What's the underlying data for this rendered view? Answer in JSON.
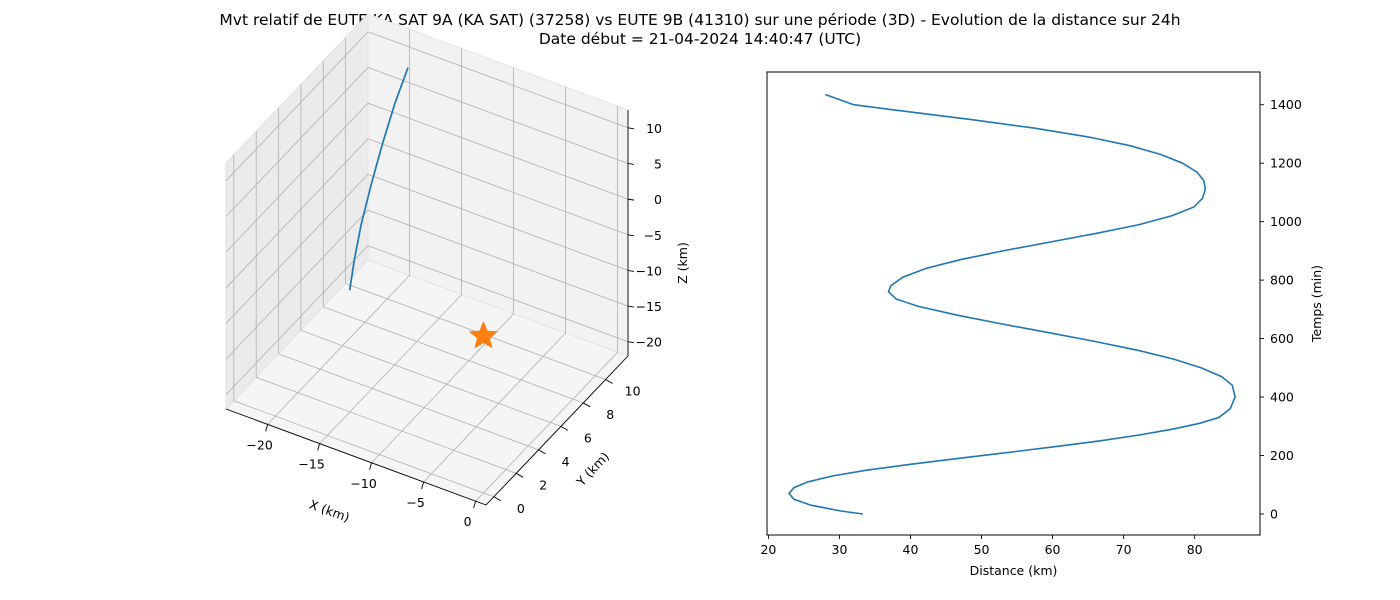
{
  "figure": {
    "title_line1": "Mvt relatif de EUTE KA SAT 9A (KA SAT) (37258) vs EUTE 9B (41310) sur une période (3D) - Evolution de la distance sur 24h",
    "title_line2": "Date début = 21-04-2024 14:40:47 (UTC)"
  },
  "chart_data": [
    {
      "type": "line3d",
      "xlabel": "X (km)",
      "ylabel": "Y (km)",
      "zlabel": "Z (km)",
      "x_ticks": [
        -20,
        -15,
        -10,
        -5,
        0
      ],
      "y_ticks": [
        0,
        2,
        4,
        6,
        8,
        10
      ],
      "z_ticks": [
        10,
        5,
        0,
        -5,
        -10,
        -15,
        -20
      ],
      "xlim": [
        -24,
        1
      ],
      "ylim": [
        -0.7,
        12
      ],
      "zlim": [
        -22,
        12.5
      ],
      "grid": true,
      "trajectory_color": "#1f77b4",
      "trajectory": [
        {
          "x": -18.0,
          "y": 10.0,
          "z": 11.5
        },
        {
          "x": -18.2,
          "y": 9.0,
          "z": 8.0
        },
        {
          "x": -18.3,
          "y": 8.0,
          "z": 4.0
        },
        {
          "x": -18.3,
          "y": 7.0,
          "z": 0.0
        },
        {
          "x": -18.2,
          "y": 6.0,
          "z": -4.0
        },
        {
          "x": -18.0,
          "y": 5.2,
          "z": -7.5
        },
        {
          "x": -17.7,
          "y": 4.5,
          "z": -10.5
        }
      ],
      "reference_marker": {
        "symbol": "star",
        "color": "#ff7f0e",
        "x": 0,
        "y": 0,
        "z": 0
      }
    },
    {
      "type": "line",
      "xlabel": "Distance (km)",
      "ylabel": "Temps (min)",
      "y_axis_side": "right",
      "x_ticks": [
        20,
        30,
        40,
        50,
        60,
        70,
        80
      ],
      "y_ticks": [
        0,
        200,
        400,
        600,
        800,
        1000,
        1200,
        1400
      ],
      "xlim": [
        19.8,
        89.2
      ],
      "ylim": [
        -72,
        1512
      ],
      "grid": false,
      "color": "#1f77b4",
      "series": [
        {
          "points": [
            [
              33.3,
              0
            ],
            [
              30.2,
              10
            ],
            [
              26.0,
              30
            ],
            [
              23.6,
              50
            ],
            [
              22.9,
              70
            ],
            [
              23.6,
              90
            ],
            [
              25.6,
              110
            ],
            [
              29.0,
              130
            ],
            [
              33.9,
              150
            ],
            [
              40.0,
              170
            ],
            [
              46.7,
              190
            ],
            [
              53.6,
              210
            ],
            [
              60.3,
              230
            ],
            [
              66.6,
              250
            ],
            [
              72.2,
              270
            ],
            [
              76.9,
              290
            ],
            [
              80.7,
              310
            ],
            [
              83.4,
              330
            ],
            [
              85.0,
              360
            ],
            [
              85.7,
              400
            ],
            [
              85.3,
              440
            ],
            [
              83.8,
              470
            ],
            [
              80.9,
              500
            ],
            [
              77.0,
              530
            ],
            [
              72.0,
              560
            ],
            [
              66.0,
              590
            ],
            [
              59.5,
              620
            ],
            [
              52.9,
              650
            ],
            [
              46.6,
              680
            ],
            [
              41.1,
              710
            ],
            [
              38.0,
              735
            ],
            [
              36.9,
              760
            ],
            [
              37.2,
              780
            ],
            [
              38.9,
              810
            ],
            [
              42.2,
              840
            ],
            [
              47.0,
              870
            ],
            [
              53.0,
              900
            ],
            [
              59.6,
              930
            ],
            [
              66.2,
              960
            ],
            [
              72.2,
              990
            ],
            [
              76.8,
              1020
            ],
            [
              79.9,
              1050
            ],
            [
              81.1,
              1080
            ],
            [
              81.5,
              1110
            ],
            [
              81.3,
              1140
            ],
            [
              80.3,
              1170
            ],
            [
              78.3,
              1200
            ],
            [
              75.2,
              1230
            ],
            [
              70.9,
              1260
            ],
            [
              65.0,
              1290
            ],
            [
              57.4,
              1320
            ],
            [
              48.4,
              1350
            ],
            [
              38.4,
              1380
            ],
            [
              32.0,
              1400
            ],
            [
              28.0,
              1435
            ]
          ]
        }
      ]
    }
  ]
}
